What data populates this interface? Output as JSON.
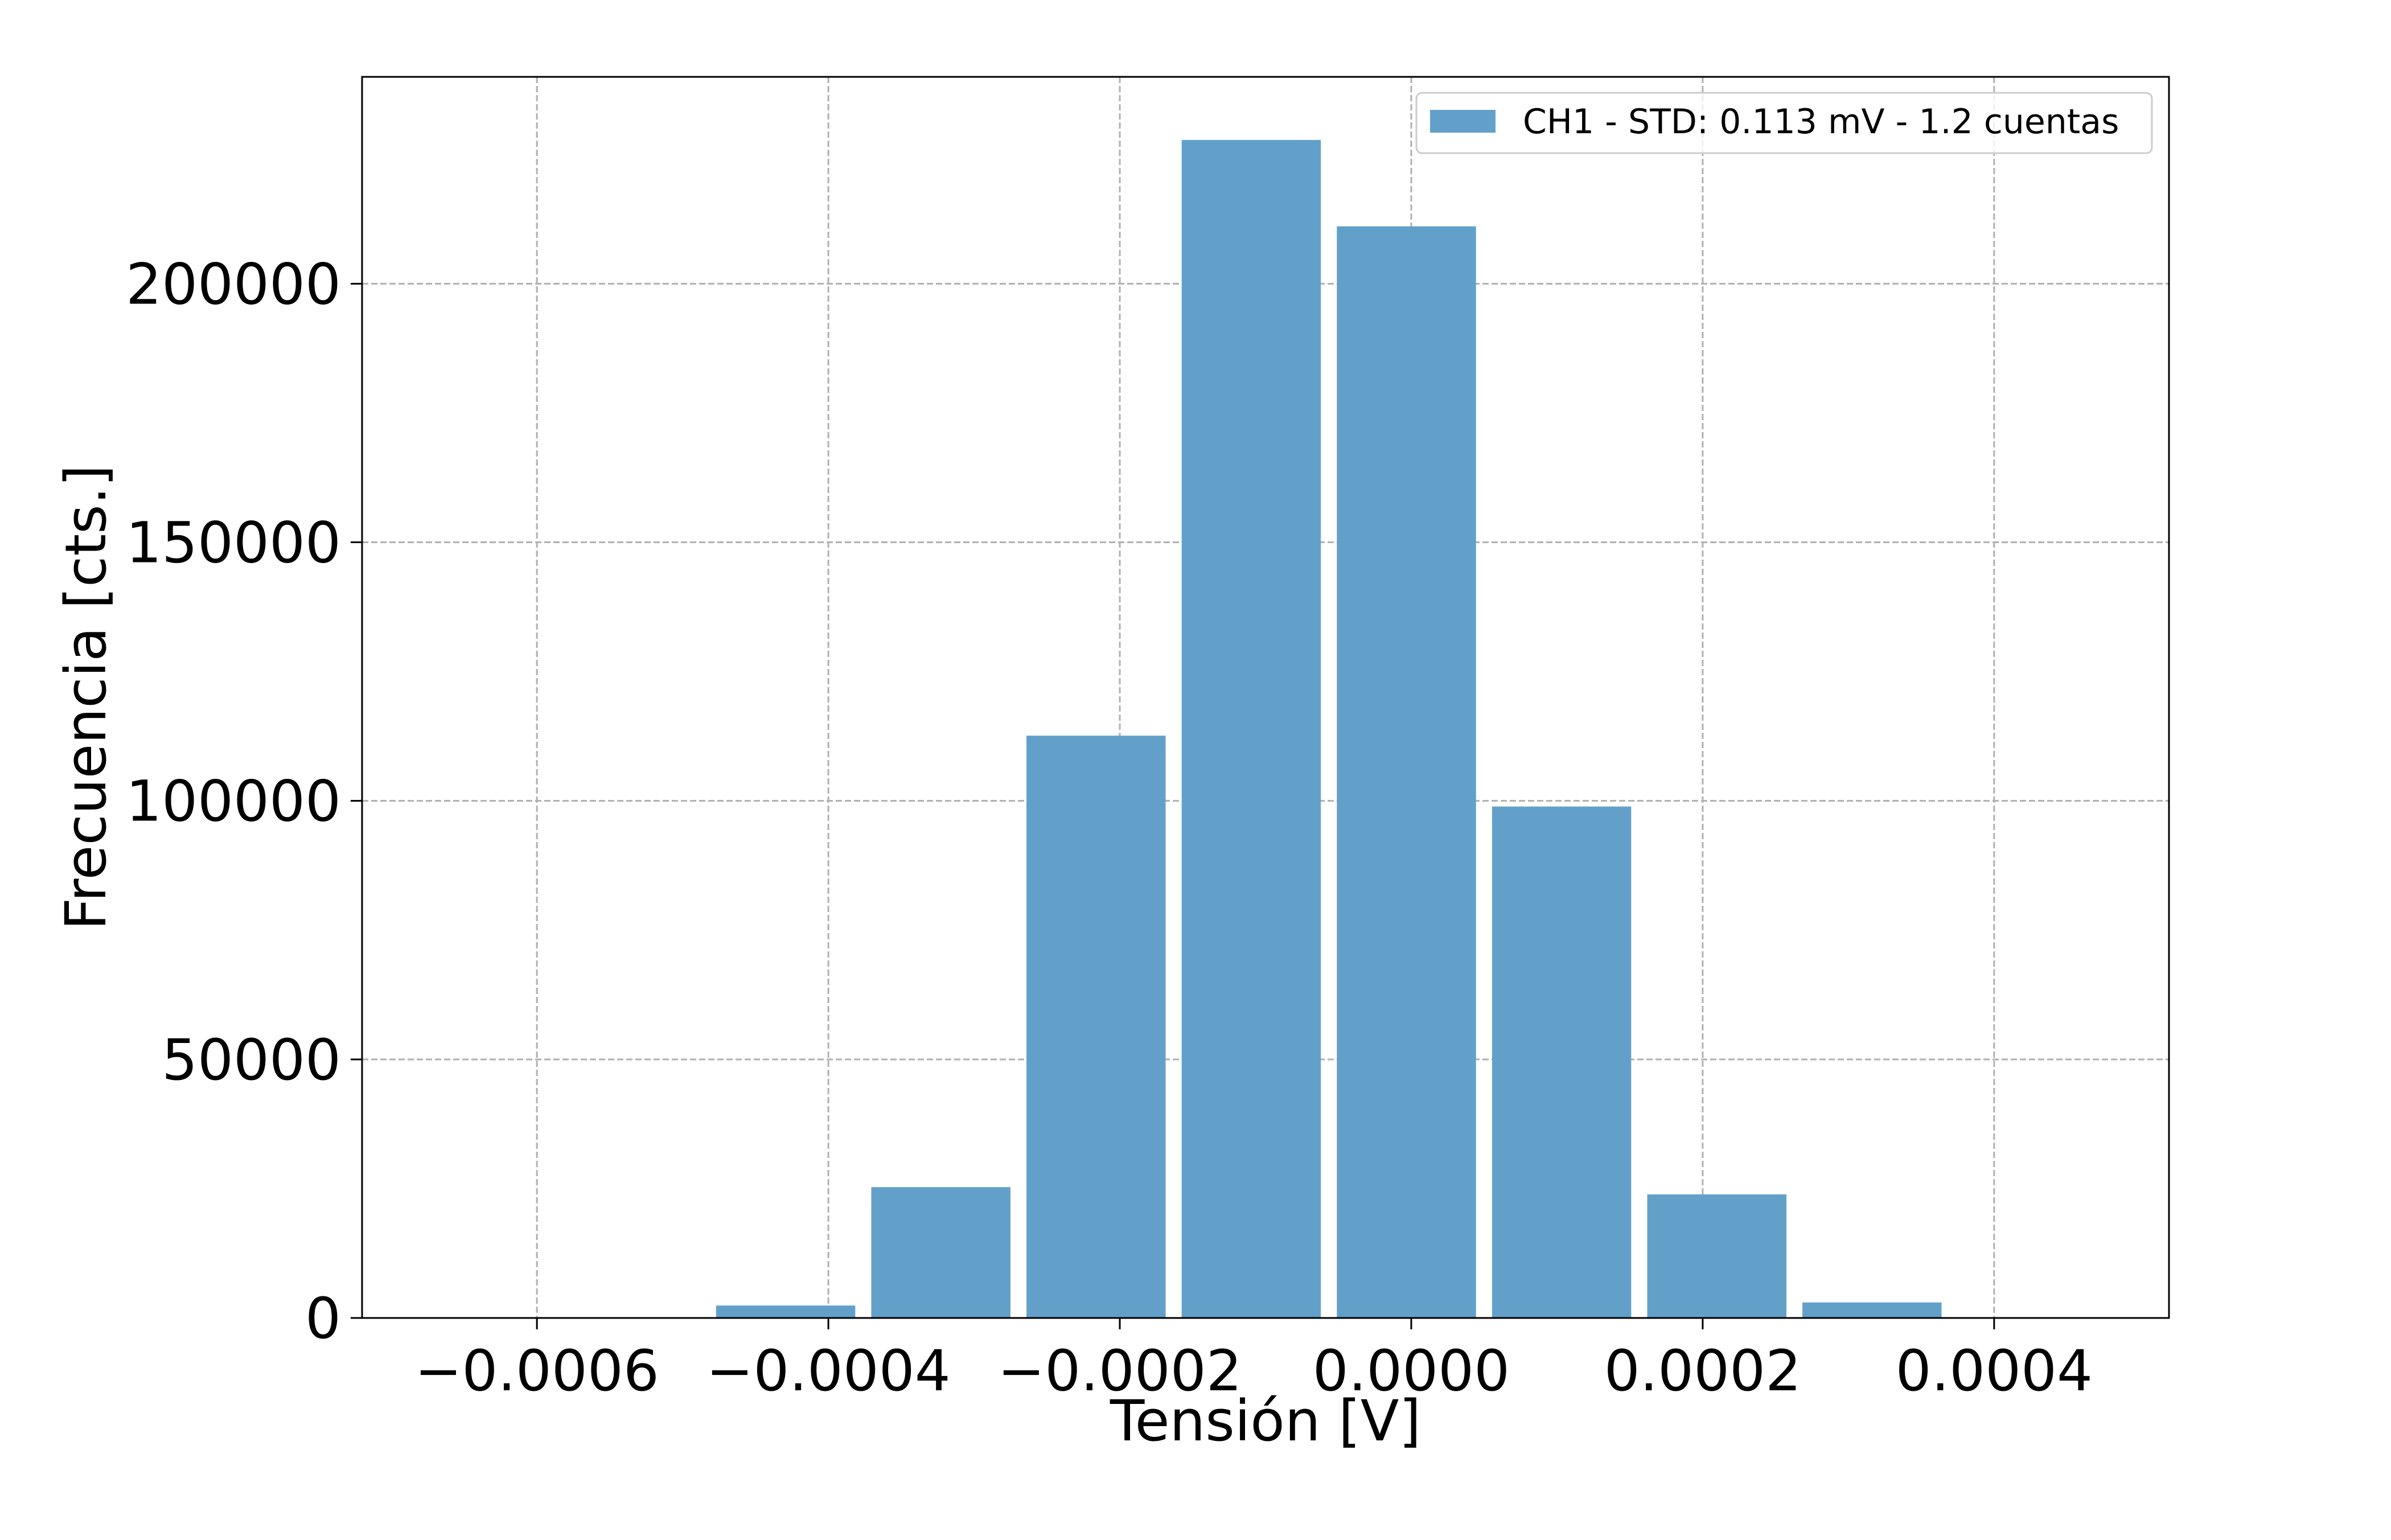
{
  "chart_data": {
    "type": "bar",
    "title": "",
    "xlabel": "Tensión [V]",
    "ylabel": "Frecuencia [cts.]",
    "xlim": [
      -0.00072,
      0.00052
    ],
    "ylim": [
      0,
      240000
    ],
    "xticks": [
      -0.0006,
      -0.0004,
      -0.0002,
      0.0,
      0.0002,
      0.0004
    ],
    "xtick_labels": [
      "−0.0006",
      "−0.0004",
      "−0.0002",
      "0.0000",
      "0.0002",
      "0.0004"
    ],
    "yticks": [
      0,
      50000,
      100000,
      150000,
      200000
    ],
    "ytick_labels": [
      "0",
      "50000",
      "100000",
      "150000",
      "200000"
    ],
    "grid": true,
    "legend_position": "top-right",
    "color": "#62a0ca",
    "series": [
      {
        "name": "CH1 - STD:  0.113 mV -   1.2 cuentas",
        "bin_width": 9.55e-05,
        "x": [
          -0.0004293,
          -0.0003228,
          -0.0002163,
          -0.0001098,
          -3.3e-06,
          0.0001032,
          0.0002097,
          0.0003162
        ],
        "values": [
          2400,
          25300,
          112600,
          227800,
          211100,
          98900,
          23900,
          3000
        ]
      }
    ]
  }
}
